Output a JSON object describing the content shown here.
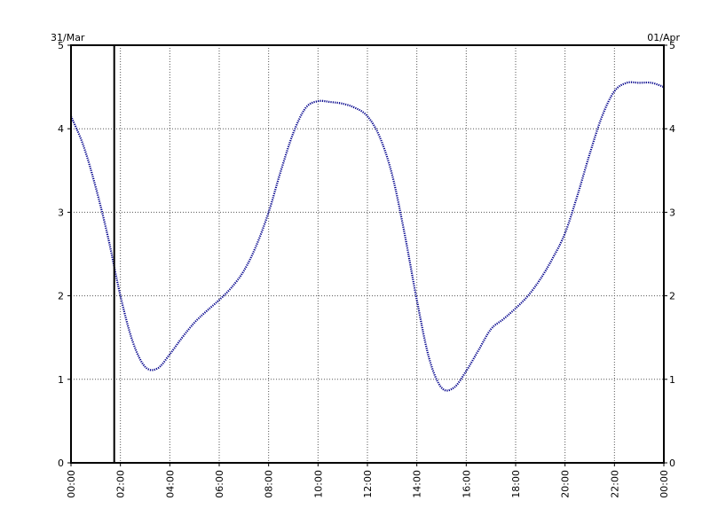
{
  "chart_data": {
    "type": "line",
    "title": "",
    "xlabel": "",
    "ylabel": "",
    "date_left": "31/Mar",
    "date_right": "01/Apr",
    "xlim": [
      0,
      24
    ],
    "ylim": [
      0,
      5
    ],
    "grid": true,
    "x_tick_labels": [
      "00:00",
      "02:00",
      "04:00",
      "06:00",
      "08:00",
      "10:00",
      "12:00",
      "14:00",
      "16:00",
      "18:00",
      "20:00",
      "22:00",
      "00:00"
    ],
    "x_tick_values": [
      0,
      2,
      4,
      6,
      8,
      10,
      12,
      14,
      16,
      18,
      20,
      22,
      24
    ],
    "y_tick_labels": [
      "0",
      "1",
      "2",
      "3",
      "4",
      "5"
    ],
    "y_tick_values": [
      0,
      1,
      2,
      3,
      4,
      5
    ],
    "marker_time": 1.75,
    "series": [
      {
        "color": "#00008b",
        "style": "dotted",
        "x": [
          0,
          0.5,
          1,
          1.5,
          2,
          2.5,
          3,
          3.5,
          4,
          4.5,
          5,
          5.5,
          6,
          6.5,
          7,
          7.5,
          8,
          8.5,
          9,
          9.5,
          10,
          10.5,
          11,
          11.5,
          12,
          12.5,
          13,
          13.5,
          14,
          14.5,
          15,
          15.5,
          16,
          16.5,
          17,
          17.5,
          18,
          18.5,
          19,
          19.5,
          20,
          20.5,
          21,
          21.5,
          22,
          22.5,
          23,
          23.5,
          24
        ],
        "y": [
          4.15,
          3.8,
          3.3,
          2.7,
          2.0,
          1.45,
          1.15,
          1.13,
          1.3,
          1.5,
          1.68,
          1.82,
          1.95,
          2.1,
          2.3,
          2.6,
          3.0,
          3.5,
          3.95,
          4.25,
          4.33,
          4.32,
          4.3,
          4.25,
          4.15,
          3.9,
          3.45,
          2.75,
          1.95,
          1.25,
          0.9,
          0.9,
          1.1,
          1.35,
          1.6,
          1.72,
          1.85,
          2.0,
          2.2,
          2.45,
          2.75,
          3.2,
          3.7,
          4.15,
          4.45,
          4.55,
          4.55,
          4.55,
          4.5
        ]
      }
    ]
  }
}
